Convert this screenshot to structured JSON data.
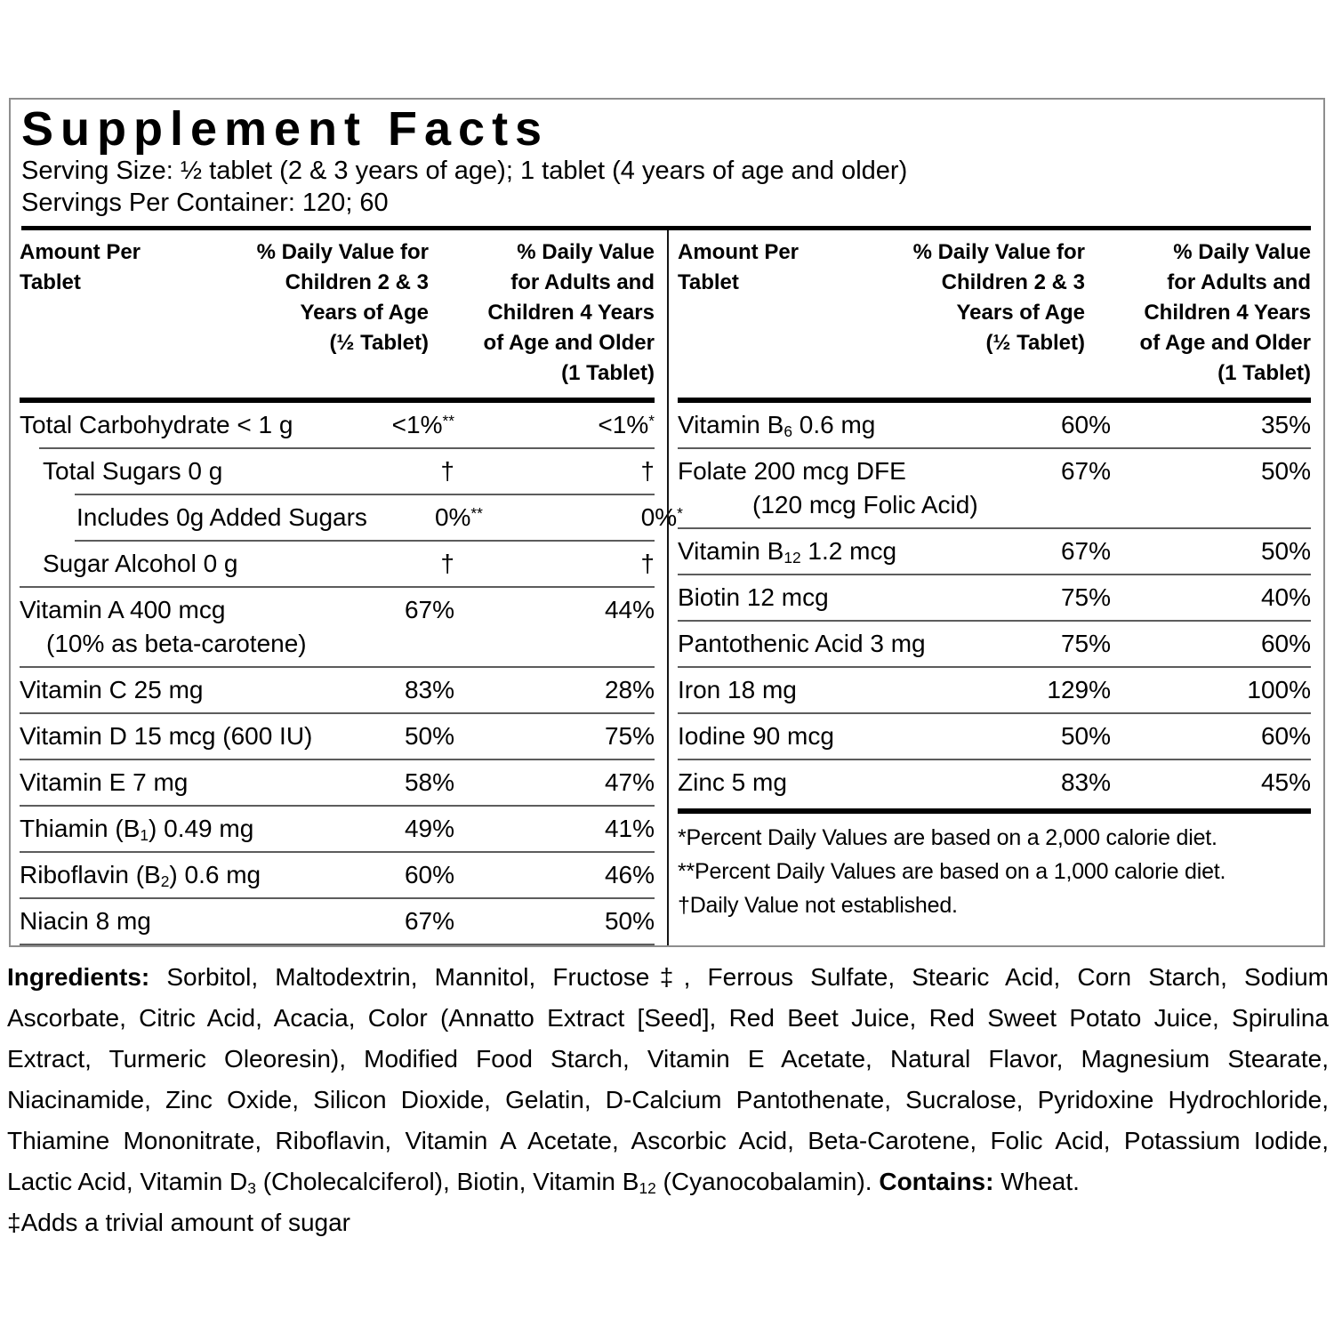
{
  "palette": {
    "text": "#000000",
    "rule_thin": "#5c5c5c",
    "rule_thick": "#000000",
    "box_border": "#8e8e8e"
  },
  "label": {
    "title": "Supplement Facts",
    "serving_size": "Serving Size: ½ tablet (2 & 3 years of age); 1 tablet (4 years of age and older)",
    "servings_per_container": "Servings Per Container: 120; 60"
  },
  "table": {
    "header": {
      "col1_lines": [
        "Amount Per",
        "Tablet"
      ],
      "col2_lines": [
        "% Daily Value for",
        "Children 2 & 3",
        "Years of Age",
        "(½ Tablet)"
      ],
      "col3_lines": [
        "% Daily Value",
        "for Adults and",
        "Children 4 Years",
        "of Age and Older",
        "(1 Tablet)"
      ]
    },
    "left_rows": [
      {
        "hr": null,
        "indent": 0,
        "name": [
          {
            "t": "Total Carbohydrate < 1 g"
          }
        ],
        "dv1": {
          "t": "<1%",
          "sup": "**"
        },
        "dv2": {
          "t": "<1%",
          "sup": "*"
        }
      },
      {
        "hr": 1,
        "indent": 1,
        "name": [
          {
            "t": "Total Sugars 0 g"
          }
        ],
        "dv1": {
          "t": "†"
        },
        "dv2": {
          "t": "†"
        }
      },
      {
        "hr": 2,
        "indent": 2,
        "name": [
          {
            "t": "Includes 0g Added Sugars"
          }
        ],
        "dv1": {
          "t": "0%",
          "sup": "**"
        },
        "dv2": {
          "t": "0%",
          "sup": "*"
        }
      },
      {
        "hr": 2,
        "indent": 1,
        "name": [
          {
            "t": "Sugar Alcohol 0 g"
          }
        ],
        "dv1": {
          "t": "†"
        },
        "dv2": {
          "t": "†"
        }
      },
      {
        "hr": 0,
        "indent": 0,
        "name": [
          {
            "t": "Vitamin A 400 mcg"
          }
        ],
        "name2": "(10% as beta-carotene)",
        "name2_indent": 30,
        "dv1": {
          "t": "67%"
        },
        "dv2": {
          "t": "44%"
        }
      },
      {
        "hr": 0,
        "indent": 0,
        "name": [
          {
            "t": "Vitamin C 25 mg"
          }
        ],
        "dv1": {
          "t": "83%"
        },
        "dv2": {
          "t": "28%"
        }
      },
      {
        "hr": 0,
        "indent": 0,
        "name": [
          {
            "t": "Vitamin D 15 mcg (600 IU)"
          }
        ],
        "dv1": {
          "t": "50%"
        },
        "dv2": {
          "t": "75%"
        }
      },
      {
        "hr": 0,
        "indent": 0,
        "name": [
          {
            "t": "Vitamin E 7 mg"
          }
        ],
        "dv1": {
          "t": "58%"
        },
        "dv2": {
          "t": "47%"
        }
      },
      {
        "hr": 0,
        "indent": 0,
        "name": [
          {
            "t": "Thiamin (B"
          },
          {
            "t": "1",
            "sub": true
          },
          {
            "t": ") 0.49 mg"
          }
        ],
        "dv1": {
          "t": "49%"
        },
        "dv2": {
          "t": "41%"
        }
      },
      {
        "hr": 0,
        "indent": 0,
        "name": [
          {
            "t": "Riboflavin (B"
          },
          {
            "t": "2",
            "sub": true
          },
          {
            "t": ") 0.6 mg"
          }
        ],
        "dv1": {
          "t": "60%"
        },
        "dv2": {
          "t": "46%"
        }
      },
      {
        "hr": 0,
        "indent": 0,
        "name": [
          {
            "t": "Niacin 8 mg"
          }
        ],
        "dv1": {
          "t": "67%"
        },
        "dv2": {
          "t": "50%"
        }
      }
    ],
    "left_trailing_rule": true,
    "right_rows": [
      {
        "hr": null,
        "indent": 0,
        "name": [
          {
            "t": "Vitamin B"
          },
          {
            "t": "6",
            "sub": true
          },
          {
            "t": " 0.6 mg"
          }
        ],
        "dv1": {
          "t": "60%"
        },
        "dv2": {
          "t": "35%"
        }
      },
      {
        "hr": 0,
        "indent": 0,
        "name": [
          {
            "t": "Folate 200 mcg DFE"
          }
        ],
        "name2": "(120 mcg Folic Acid)",
        "name2_indent": 84,
        "dv1": {
          "t": "67%"
        },
        "dv2": {
          "t": "50%"
        }
      },
      {
        "hr": 0,
        "indent": 0,
        "name": [
          {
            "t": "Vitamin B"
          },
          {
            "t": "12",
            "sub": true
          },
          {
            "t": " 1.2 mcg"
          }
        ],
        "dv1": {
          "t": "67%"
        },
        "dv2": {
          "t": "50%"
        }
      },
      {
        "hr": 0,
        "indent": 0,
        "name": [
          {
            "t": "Biotin 12 mcg"
          }
        ],
        "dv1": {
          "t": "75%"
        },
        "dv2": {
          "t": "40%"
        }
      },
      {
        "hr": 0,
        "indent": 0,
        "name": [
          {
            "t": "Pantothenic Acid 3 mg"
          }
        ],
        "dv1": {
          "t": "75%"
        },
        "dv2": {
          "t": "60%"
        }
      },
      {
        "hr": 0,
        "indent": 0,
        "name": [
          {
            "t": "Iron 18 mg"
          }
        ],
        "dv1": {
          "t": "129%"
        },
        "dv2": {
          "t": "100%"
        }
      },
      {
        "hr": 0,
        "indent": 0,
        "name": [
          {
            "t": "Iodine 90 mcg"
          }
        ],
        "dv1": {
          "t": "50%"
        },
        "dv2": {
          "t": "60%"
        }
      },
      {
        "hr": 0,
        "indent": 0,
        "name": [
          {
            "t": "Zinc 5 mg"
          }
        ],
        "dv1": {
          "t": "83%"
        },
        "dv2": {
          "t": "45%"
        }
      }
    ],
    "footnotes": [
      "*Percent Daily Values are based on a 2,000 calorie diet.",
      "**Percent Daily Values are based on a 1,000 calorie diet.",
      "†Daily Value not established."
    ]
  },
  "ingredients": {
    "lines": [
      {
        "justify": true,
        "segments": [
          {
            "t": "Ingredients: ",
            "bold": true
          },
          {
            "t": "Sorbitol, Maltodextrin, Mannitol, Fructose‡, Ferrous Sulfate, Stearic Acid, Corn Starch, Sodium"
          }
        ]
      },
      {
        "justify": true,
        "segments": [
          {
            "t": "Ascorbate, Citric Acid, Acacia, Color (Annatto Extract [Seed], Red Beet Juice, Red Sweet Potato Juice, Spirulina"
          }
        ]
      },
      {
        "justify": true,
        "segments": [
          {
            "t": "Extract, Turmeric Oleoresin), Modified Food Starch, Vitamin E Acetate, Natural Flavor, Magnesium Stearate,"
          }
        ]
      },
      {
        "justify": true,
        "segments": [
          {
            "t": "Niacinamide, Zinc Oxide, Silicon Dioxide, Gelatin, D-Calcium Pantothenate, Sucralose, Pyridoxine Hydrochloride,"
          }
        ]
      },
      {
        "justify": true,
        "segments": [
          {
            "t": "Thiamine Mononitrate, Riboflavin, Vitamin A Acetate, Ascorbic Acid, Beta-Carotene, Folic Acid, Potassium Iodide,"
          }
        ]
      },
      {
        "justify": false,
        "segments": [
          {
            "t": "Lactic Acid, Vitamin D"
          },
          {
            "t": "3",
            "sub": true
          },
          {
            "t": " (Cholecalciferol), Biotin, Vitamin B"
          },
          {
            "t": "12",
            "sub": true
          },
          {
            "t": " (Cyanocobalamin).  "
          },
          {
            "t": "Contains:",
            "bold": true
          },
          {
            "t": " Wheat."
          }
        ]
      },
      {
        "justify": false,
        "segments": [
          {
            "t": "‡Adds a trivial amount of sugar"
          }
        ]
      }
    ]
  }
}
